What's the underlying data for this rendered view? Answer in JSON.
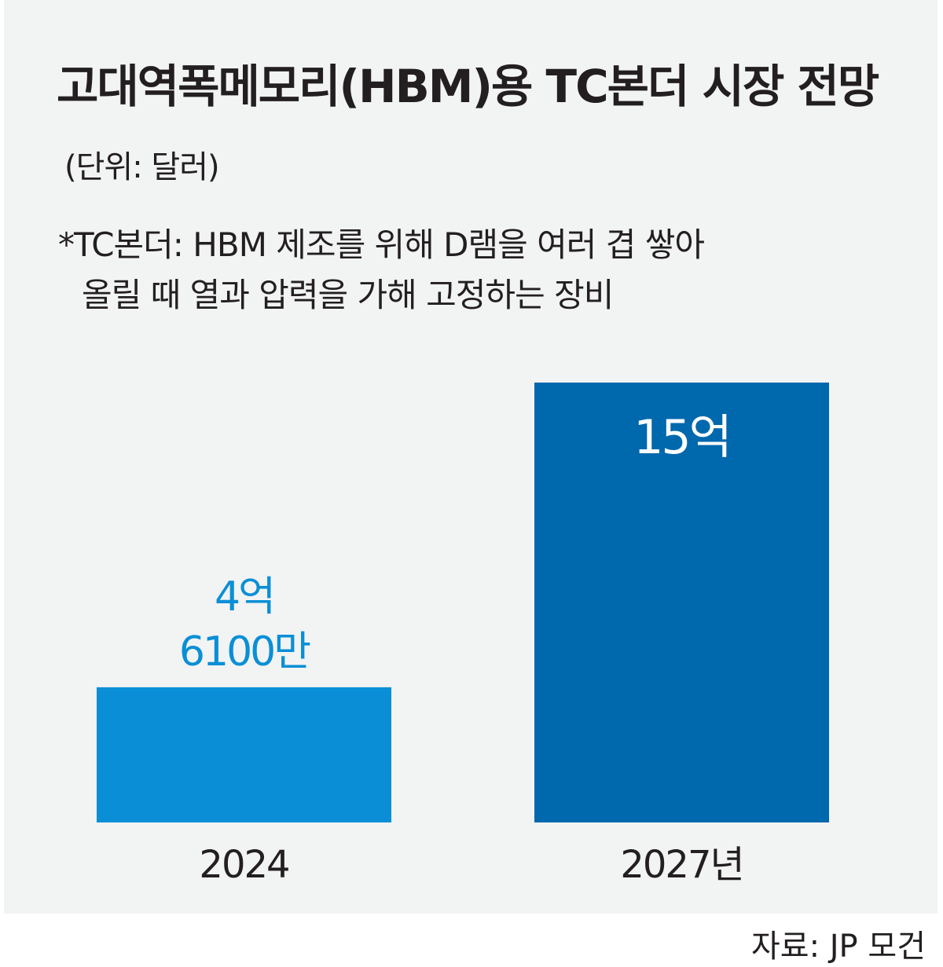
{
  "chart_data": {
    "type": "bar",
    "title": "고대역폭메모리(HBM)용 TC본더 시장 전망",
    "subtitle": "(단위: 달러)",
    "note": "*TC본더: HBM 제조를 위해 D램을 여러 겹 쌓아올릴 때 열과 압력을 가해 고정하는 장비",
    "source": "자료: JP 모건",
    "categories": [
      "2024",
      "2027년"
    ],
    "values": [
      461000000,
      1500000000
    ],
    "value_labels": [
      "4억 6100만",
      "15억"
    ],
    "colors": [
      "#0a8fd6",
      "#0068ad"
    ]
  }
}
